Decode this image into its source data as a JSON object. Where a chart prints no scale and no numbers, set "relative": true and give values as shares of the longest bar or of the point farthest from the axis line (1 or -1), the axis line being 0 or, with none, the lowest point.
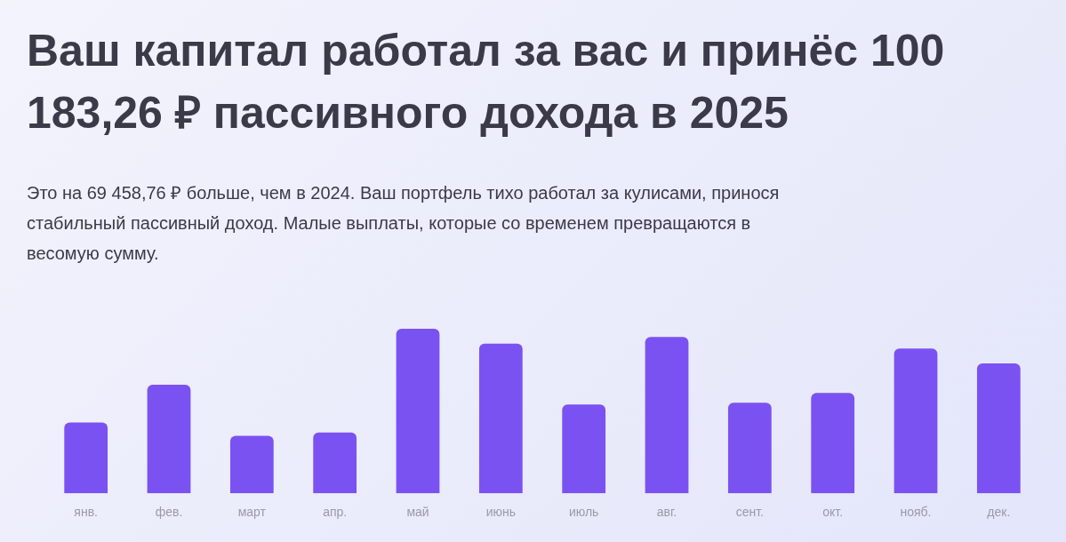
{
  "chart_data": {
    "type": "bar",
    "title": "Ваш капитал работал за вас и принёс 100 183,26 ₽ пассивного дохода в 2025",
    "subtitle": "Это на 69 458,76 ₽ больше, чем в 2024. Ваш портфель тихо работал за кулисами, принося стабильный пассивный доход. Малые выплаты, которые со временем превращаются в весомую сумму.",
    "categories": [
      "янв.",
      "фев.",
      "март",
      "апр.",
      "май",
      "июнь",
      "июль",
      "авг.",
      "сент.",
      "окт.",
      "нояб.",
      "дек."
    ],
    "values": [
      0.43,
      0.66,
      0.35,
      0.37,
      1,
      0.91,
      0.54,
      0.95,
      0.55,
      0.61,
      0.88,
      0.79
    ],
    "color": "#7b52f2",
    "relative": true,
    "grid": false,
    "legend": false
  }
}
